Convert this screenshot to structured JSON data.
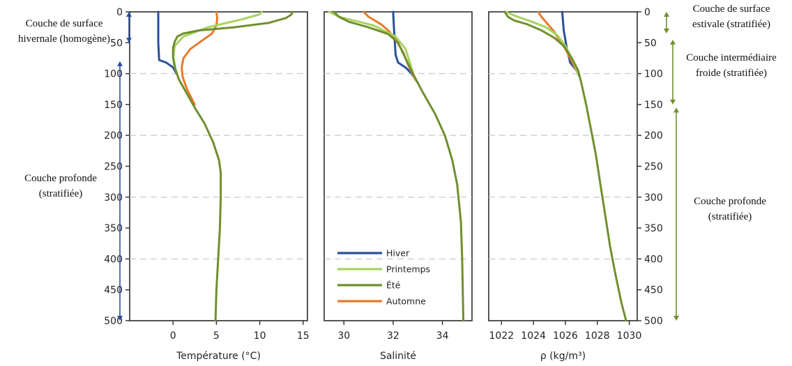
{
  "chart_data": {
    "type": "line",
    "y_axis": {
      "title": "",
      "ticks": [
        0,
        50,
        100,
        150,
        200,
        250,
        300,
        350,
        400,
        450,
        500
      ],
      "range": [
        0,
        500
      ],
      "inverted": true
    },
    "grid": {
      "horizontal_dashed_at": [
        100,
        200,
        300,
        400
      ]
    },
    "legend": {
      "placement": "inside-bottom-left of middle panel",
      "entries": [
        {
          "name": "Hiver",
          "color": "#2a4f9a"
        },
        {
          "name": "Printemps",
          "color": "#a8d35e"
        },
        {
          "name": "Été",
          "color": "#6f8f2e"
        },
        {
          "name": "Automne",
          "color": "#e87a2c"
        }
      ]
    },
    "panels": [
      {
        "key": "temperature",
        "xlabel": "Température (°C)",
        "xlim": [
          -5,
          15.5
        ],
        "xticks": [
          0,
          5,
          10,
          15
        ],
        "series": [
          {
            "name": "Hiver",
            "color": "#2a4f9a",
            "points": [
              [
                -1.7,
                0
              ],
              [
                -1.7,
                50
              ],
              [
                -1.6,
                78
              ],
              [
                -0.8,
                82
              ],
              [
                0,
                90
              ],
              [
                0.4,
                100
              ]
            ]
          },
          {
            "name": "Printemps",
            "color": "#a8d35e",
            "points": [
              [
                10.2,
                0
              ],
              [
                10,
                4
              ],
              [
                8,
                12
              ],
              [
                4,
                25
              ],
              [
                1.2,
                40
              ],
              [
                0.2,
                55
              ],
              [
                0,
                75
              ],
              [
                0.2,
                90
              ],
              [
                0.5,
                100
              ]
            ]
          },
          {
            "name": "Été",
            "color": "#6f8f2e",
            "points": [
              [
                13.8,
                0
              ],
              [
                13.6,
                5
              ],
              [
                13,
                10
              ],
              [
                11,
                18
              ],
              [
                7,
                25
              ],
              [
                3,
                30
              ],
              [
                1.2,
                35
              ],
              [
                0.5,
                40
              ],
              [
                0.2,
                48
              ],
              [
                0,
                58
              ],
              [
                0,
                72
              ],
              [
                0.3,
                95
              ],
              [
                0.7,
                110
              ],
              [
                1.5,
                130
              ],
              [
                2.5,
                155
              ],
              [
                3.6,
                180
              ],
              [
                4.6,
                210
              ],
              [
                5.3,
                240
              ],
              [
                5.5,
                260
              ],
              [
                5.5,
                300
              ],
              [
                5.4,
                350
              ],
              [
                5.2,
                400
              ],
              [
                5,
                450
              ],
              [
                4.9,
                500
              ]
            ]
          },
          {
            "name": "Automne",
            "color": "#e87a2c",
            "points": [
              [
                5,
                0
              ],
              [
                5.1,
                10
              ],
              [
                5,
                22
              ],
              [
                4.5,
                35
              ],
              [
                3,
                50
              ],
              [
                2,
                60
              ],
              [
                1.2,
                75
              ],
              [
                1,
                90
              ],
              [
                1.1,
                105
              ],
              [
                1.6,
                125
              ],
              [
                2.5,
                150
              ]
            ]
          }
        ]
      },
      {
        "key": "salinity",
        "xlabel": "Salinité",
        "xlim": [
          29.2,
          35.2
        ],
        "xticks": [
          30,
          32,
          34
        ],
        "series": [
          {
            "name": "Hiver",
            "color": "#2a4f9a",
            "points": [
              [
                32,
                0
              ],
              [
                32.05,
                40
              ],
              [
                32.1,
                70
              ],
              [
                32.2,
                82
              ],
              [
                32.5,
                90
              ],
              [
                32.75,
                100
              ],
              [
                33,
                115
              ]
            ]
          },
          {
            "name": "Printemps",
            "color": "#a8d35e",
            "points": [
              [
                29.4,
                0
              ],
              [
                29.8,
                8
              ],
              [
                30.5,
                15
              ],
              [
                31.2,
                22
              ],
              [
                32.1,
                40
              ],
              [
                32.5,
                60
              ],
              [
                32.7,
                85
              ],
              [
                32.9,
                110
              ]
            ]
          },
          {
            "name": "Été",
            "color": "#6f8f2e",
            "points": [
              [
                29.6,
                0
              ],
              [
                29.8,
                8
              ],
              [
                30.2,
                16
              ],
              [
                31,
                25
              ],
              [
                31.8,
                36
              ],
              [
                32.2,
                50
              ],
              [
                32.5,
                75
              ],
              [
                32.8,
                100
              ],
              [
                33.2,
                130
              ],
              [
                33.7,
                165
              ],
              [
                34.1,
                200
              ],
              [
                34.4,
                240
              ],
              [
                34.6,
                280
              ],
              [
                34.75,
                340
              ],
              [
                34.8,
                400
              ],
              [
                34.85,
                500
              ]
            ]
          },
          {
            "name": "Automne",
            "color": "#e87a2c",
            "points": [
              [
                30.8,
                0
              ],
              [
                31,
                8
              ],
              [
                31.5,
                20
              ],
              [
                31.8,
                30
              ],
              [
                32.1,
                45
              ],
              [
                32.4,
                65
              ],
              [
                32.6,
                85
              ],
              [
                32.9,
                110
              ]
            ]
          }
        ]
      },
      {
        "key": "density",
        "xlabel": "ρ (kg/m³)",
        "xlim": [
          1021.2,
          1030.5
        ],
        "xticks": [
          1022,
          1024,
          1026,
          1028,
          1030
        ],
        "series": [
          {
            "name": "Hiver",
            "color": "#2a4f9a",
            "points": [
              [
                1025.8,
                0
              ],
              [
                1025.9,
                30
              ],
              [
                1026.1,
                60
              ],
              [
                1026.3,
                82
              ],
              [
                1026.7,
                95
              ],
              [
                1026.9,
                105
              ]
            ]
          },
          {
            "name": "Printemps",
            "color": "#a8d35e",
            "points": [
              [
                1022.3,
                0
              ],
              [
                1022.8,
                6
              ],
              [
                1023.8,
                15
              ],
              [
                1024.8,
                25
              ],
              [
                1025.5,
                38
              ],
              [
                1026,
                55
              ],
              [
                1026.4,
                75
              ],
              [
                1026.8,
                100
              ]
            ]
          },
          {
            "name": "Été",
            "color": "#6f8f2e",
            "points": [
              [
                1022.2,
                0
              ],
              [
                1022.4,
                8
              ],
              [
                1022.8,
                14
              ],
              [
                1023.6,
                20
              ],
              [
                1024.5,
                30
              ],
              [
                1025.3,
                42
              ],
              [
                1025.9,
                55
              ],
              [
                1026.4,
                75
              ],
              [
                1026.8,
                95
              ],
              [
                1027,
                115
              ],
              [
                1027.3,
                150
              ],
              [
                1027.6,
                190
              ],
              [
                1027.9,
                230
              ],
              [
                1028.2,
                280
              ],
              [
                1028.5,
                330
              ],
              [
                1028.8,
                380
              ],
              [
                1029.1,
                420
              ],
              [
                1029.5,
                470
              ],
              [
                1029.8,
                500
              ]
            ]
          },
          {
            "name": "Automne",
            "color": "#e87a2c",
            "points": [
              [
                1024.3,
                0
              ],
              [
                1024.5,
                8
              ],
              [
                1024.9,
                20
              ],
              [
                1025.3,
                32
              ],
              [
                1025.6,
                45
              ],
              [
                1026,
                60
              ],
              [
                1026.4,
                80
              ],
              [
                1026.8,
                100
              ]
            ]
          }
        ]
      }
    ],
    "annotations": [
      {
        "side": "left",
        "range": [
          0,
          50
        ],
        "color": "#2a4f9a",
        "text": "Couche de surface hivernale (homogène)",
        "lines": [
          "Couche de surface",
          "hivernale (homogène)"
        ]
      },
      {
        "side": "left",
        "range": [
          80,
          500
        ],
        "color": "#2a4f9a",
        "text": "Couche profonde (stratifiée)",
        "lines": [
          "Couche profonde",
          "(stratifiée)"
        ]
      },
      {
        "side": "right",
        "range": [
          0,
          35
        ],
        "color": "#6f8f2e",
        "text": "Couche de surface estivale (stratifiée)",
        "lines": [
          "Couche de surface",
          "estivale (stratifiée)"
        ]
      },
      {
        "side": "right",
        "range": [
          45,
          150
        ],
        "color": "#6f8f2e",
        "text": "Couche intermédiaire froide (stratifiée)",
        "lines": [
          "Couche intermédiaire",
          "froide (stratifiée)"
        ]
      },
      {
        "side": "right",
        "range": [
          155,
          500
        ],
        "color": "#6f8f2e",
        "text": "Couche profonde (stratifiée)",
        "lines": [
          "Couche profonde",
          "(stratifiée)"
        ]
      }
    ]
  }
}
